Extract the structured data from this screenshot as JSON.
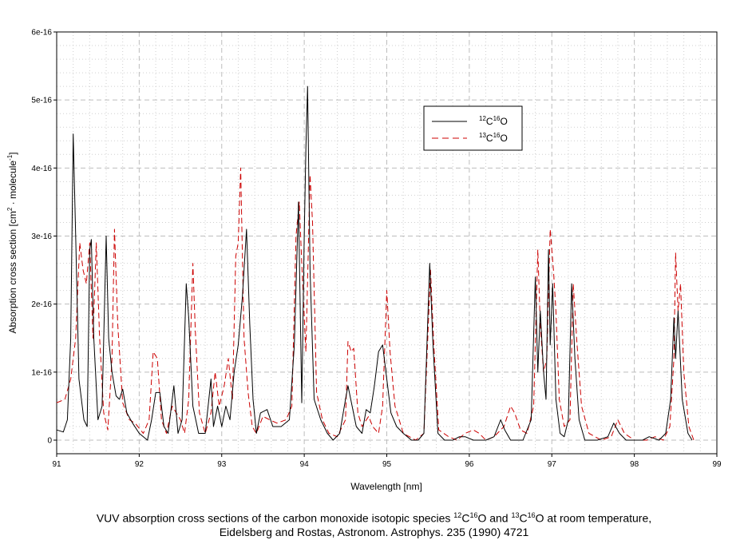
{
  "chart_data": {
    "type": "line",
    "xlabel": "Wavelength [nm]",
    "ylabel_prefix": "Absorption cross section [cm",
    "ylabel_sup1": "2",
    "ylabel_mid": " · molecule",
    "ylabel_sup2": "-1",
    "ylabel_suffix": "]",
    "xlim": [
      91,
      99
    ],
    "ylim": [
      0,
      6e-16
    ],
    "x_ticks": [
      "91",
      "92",
      "93",
      "94",
      "95",
      "96",
      "97",
      "98",
      "99"
    ],
    "y_ticks": [
      "0",
      "1e-16",
      "2e-16",
      "3e-16",
      "4e-16",
      "5e-16",
      "6e-16"
    ],
    "grid": true,
    "legend_position": "top-center-right",
    "series": [
      {
        "name": "12C16O",
        "label_parts": [
          "12",
          "C",
          "16",
          "O"
        ],
        "color": "#000000",
        "dash": "solid",
        "points": [
          [
            91.0,
            1.5e-17
          ],
          [
            91.08,
            1.2e-17
          ],
          [
            91.13,
            3e-17
          ],
          [
            91.17,
            1.5e-16
          ],
          [
            91.2,
            4.5e-16
          ],
          [
            91.23,
            3e-16
          ],
          [
            91.27,
            9e-17
          ],
          [
            91.33,
            3e-17
          ],
          [
            91.37,
            2e-17
          ],
          [
            91.4,
            2.8e-16
          ],
          [
            91.42,
            2.95e-16
          ],
          [
            91.45,
            1.5e-16
          ],
          [
            91.5,
            3e-17
          ],
          [
            91.55,
            5e-17
          ],
          [
            91.6,
            3e-16
          ],
          [
            91.63,
            1.5e-16
          ],
          [
            91.67,
            1e-16
          ],
          [
            91.72,
            6.5e-17
          ],
          [
            91.76,
            6e-17
          ],
          [
            91.8,
            7.5e-17
          ],
          [
            91.85,
            4e-17
          ],
          [
            91.92,
            2.5e-17
          ],
          [
            92.0,
            1e-17
          ],
          [
            92.1,
            0.0
          ],
          [
            92.15,
            3e-17
          ],
          [
            92.2,
            7e-17
          ],
          [
            92.25,
            7e-17
          ],
          [
            92.3,
            2e-17
          ],
          [
            92.35,
            1e-17
          ],
          [
            92.42,
            8e-17
          ],
          [
            92.47,
            1e-17
          ],
          [
            92.52,
            3e-17
          ],
          [
            92.57,
            2.3e-16
          ],
          [
            92.6,
            1.8e-16
          ],
          [
            92.65,
            5e-17
          ],
          [
            92.72,
            1e-17
          ],
          [
            92.8,
            1e-17
          ],
          [
            92.87,
            9e-17
          ],
          [
            92.9,
            2e-17
          ],
          [
            92.95,
            5e-17
          ],
          [
            93.0,
            2e-17
          ],
          [
            93.05,
            5e-17
          ],
          [
            93.1,
            3e-17
          ],
          [
            93.15,
            1e-16
          ],
          [
            93.2,
            1.4e-16
          ],
          [
            93.25,
            2.1e-16
          ],
          [
            93.3,
            3.1e-16
          ],
          [
            93.34,
            1.7e-16
          ],
          [
            93.38,
            6e-17
          ],
          [
            93.42,
            1e-17
          ],
          [
            93.47,
            4e-17
          ],
          [
            93.55,
            4.5e-17
          ],
          [
            93.62,
            2e-17
          ],
          [
            93.72,
            2e-17
          ],
          [
            93.82,
            3e-17
          ],
          [
            93.88,
            1.4e-16
          ],
          [
            93.93,
            3.5e-16
          ],
          [
            93.97,
            5.5e-17
          ],
          [
            94.0,
            3e-16
          ],
          [
            94.02,
            4.3e-16
          ],
          [
            94.04,
            5.2e-16
          ],
          [
            94.07,
            2.5e-16
          ],
          [
            94.12,
            6e-17
          ],
          [
            94.2,
            3e-17
          ],
          [
            94.28,
            1e-17
          ],
          [
            94.35,
            0.0
          ],
          [
            94.43,
            1e-17
          ],
          [
            94.5,
            6e-17
          ],
          [
            94.53,
            8e-17
          ],
          [
            94.58,
            5e-17
          ],
          [
            94.63,
            2e-17
          ],
          [
            94.7,
            1e-17
          ],
          [
            94.75,
            4.5e-17
          ],
          [
            94.8,
            4e-17
          ],
          [
            94.85,
            8e-17
          ],
          [
            94.9,
            1.3e-16
          ],
          [
            94.95,
            1.4e-16
          ],
          [
            95.0,
            9e-17
          ],
          [
            95.05,
            4e-17
          ],
          [
            95.12,
            2e-17
          ],
          [
            95.2,
            1e-17
          ],
          [
            95.3,
            0.0
          ],
          [
            95.38,
            0.0
          ],
          [
            95.45,
            1e-17
          ],
          [
            95.52,
            2.6e-16
          ],
          [
            95.56,
            1.4e-16
          ],
          [
            95.62,
            1e-17
          ],
          [
            95.7,
            0.0
          ],
          [
            95.8,
            0.0
          ],
          [
            95.88,
            5e-18
          ],
          [
            95.95,
            5e-18
          ],
          [
            96.05,
            0.0
          ],
          [
            96.2,
            0.0
          ],
          [
            96.3,
            5e-18
          ],
          [
            96.38,
            3e-17
          ],
          [
            96.43,
            1.5e-17
          ],
          [
            96.5,
            0.0
          ],
          [
            96.65,
            0.0
          ],
          [
            96.75,
            3e-17
          ],
          [
            96.8,
            2.4e-16
          ],
          [
            96.83,
            1e-16
          ],
          [
            96.86,
            1.9e-16
          ],
          [
            96.9,
            1e-16
          ],
          [
            96.93,
            6e-17
          ],
          [
            96.96,
            2.8e-16
          ],
          [
            96.98,
            1.4e-16
          ],
          [
            97.01,
            2.3e-16
          ],
          [
            97.05,
            6e-17
          ],
          [
            97.1,
            1e-17
          ],
          [
            97.15,
            5e-18
          ],
          [
            97.2,
            3e-17
          ],
          [
            97.24,
            2.3e-16
          ],
          [
            97.28,
            1.2e-16
          ],
          [
            97.33,
            3e-17
          ],
          [
            97.4,
            0.0
          ],
          [
            97.55,
            0.0
          ],
          [
            97.68,
            5e-18
          ],
          [
            97.75,
            2.5e-17
          ],
          [
            97.82,
            1e-17
          ],
          [
            97.9,
            0.0
          ],
          [
            98.0,
            0.0
          ],
          [
            98.1,
            0.0
          ],
          [
            98.18,
            5e-18
          ],
          [
            98.3,
            0.0
          ],
          [
            98.38,
            1e-17
          ],
          [
            98.44,
            6e-17
          ],
          [
            98.48,
            1.8e-16
          ],
          [
            98.5,
            1.2e-16
          ],
          [
            98.53,
            1.9e-16
          ],
          [
            98.58,
            6e-17
          ],
          [
            98.65,
            1e-17
          ],
          [
            98.7,
            0.0
          ]
        ]
      },
      {
        "name": "13C16O",
        "label_parts": [
          "13",
          "C",
          "16",
          "O"
        ],
        "color": "#cc0000",
        "dash": "dashed",
        "points": [
          [
            91.0,
            5.5e-17
          ],
          [
            91.1,
            6e-17
          ],
          [
            91.17,
            9e-17
          ],
          [
            91.23,
            1.5e-16
          ],
          [
            91.28,
            2.9e-16
          ],
          [
            91.32,
            2.5e-16
          ],
          [
            91.36,
            2.3e-16
          ],
          [
            91.4,
            2.9e-16
          ],
          [
            91.44,
            1.5e-16
          ],
          [
            91.48,
            2.9e-16
          ],
          [
            91.52,
            1.5e-16
          ],
          [
            91.57,
            4e-17
          ],
          [
            91.62,
            1.5e-17
          ],
          [
            91.67,
            1.2e-16
          ],
          [
            91.7,
            3.1e-16
          ],
          [
            91.74,
            1.7e-16
          ],
          [
            91.8,
            5.5e-17
          ],
          [
            91.88,
            3e-17
          ],
          [
            91.95,
            2.5e-17
          ],
          [
            92.05,
            1e-17
          ],
          [
            92.12,
            3e-17
          ],
          [
            92.17,
            1.3e-16
          ],
          [
            92.22,
            1.2e-16
          ],
          [
            92.27,
            3e-17
          ],
          [
            92.33,
            1e-17
          ],
          [
            92.4,
            5e-17
          ],
          [
            92.45,
            4e-17
          ],
          [
            92.5,
            3e-17
          ],
          [
            92.55,
            1e-17
          ],
          [
            92.6,
            6e-17
          ],
          [
            92.65,
            2.6e-16
          ],
          [
            92.68,
            1.6e-16
          ],
          [
            92.73,
            4e-17
          ],
          [
            92.8,
            1e-17
          ],
          [
            92.87,
            4e-17
          ],
          [
            92.92,
            1e-16
          ],
          [
            92.97,
            5e-17
          ],
          [
            93.03,
            8e-17
          ],
          [
            93.08,
            1.2e-16
          ],
          [
            93.13,
            6e-17
          ],
          [
            93.17,
            2.7e-16
          ],
          [
            93.2,
            2.9e-16
          ],
          [
            93.23,
            4e-16
          ],
          [
            93.27,
            1.5e-16
          ],
          [
            93.32,
            7e-17
          ],
          [
            93.37,
            2e-17
          ],
          [
            93.42,
            1e-17
          ],
          [
            93.5,
            3.5e-17
          ],
          [
            93.58,
            3e-17
          ],
          [
            93.67,
            2.5e-17
          ],
          [
            93.78,
            3e-17
          ],
          [
            93.85,
            5e-17
          ],
          [
            93.9,
            3e-16
          ],
          [
            93.94,
            3.5e-16
          ],
          [
            93.97,
            2.6e-16
          ],
          [
            94.02,
            1.3e-16
          ],
          [
            94.07,
            3.9e-16
          ],
          [
            94.1,
            3.2e-16
          ],
          [
            94.15,
            7e-17
          ],
          [
            94.22,
            3e-17
          ],
          [
            94.3,
            1e-17
          ],
          [
            94.4,
            5e-18
          ],
          [
            94.5,
            3e-17
          ],
          [
            94.53,
            1.45e-16
          ],
          [
            94.57,
            1.3e-16
          ],
          [
            94.6,
            1.35e-16
          ],
          [
            94.65,
            4e-17
          ],
          [
            94.7,
            2e-17
          ],
          [
            94.78,
            3.5e-17
          ],
          [
            94.83,
            2e-17
          ],
          [
            94.9,
            1e-17
          ],
          [
            94.95,
            5e-17
          ],
          [
            95.0,
            2.2e-16
          ],
          [
            95.04,
            1.3e-16
          ],
          [
            95.1,
            5e-17
          ],
          [
            95.2,
            1e-17
          ],
          [
            95.35,
            0.0
          ],
          [
            95.45,
            1e-17
          ],
          [
            95.53,
            2.5e-16
          ],
          [
            95.57,
            1.4e-16
          ],
          [
            95.63,
            1.5e-17
          ],
          [
            95.75,
            5e-18
          ],
          [
            95.85,
            0.0
          ],
          [
            95.95,
            1e-17
          ],
          [
            96.05,
            1.5e-17
          ],
          [
            96.12,
            1e-17
          ],
          [
            96.2,
            0.0
          ],
          [
            96.3,
            5e-18
          ],
          [
            96.42,
            2e-17
          ],
          [
            96.5,
            5e-17
          ],
          [
            96.55,
            4e-17
          ],
          [
            96.62,
            1.5e-17
          ],
          [
            96.7,
            1e-17
          ],
          [
            96.78,
            5e-17
          ],
          [
            96.83,
            2.8e-16
          ],
          [
            96.86,
            1.7e-16
          ],
          [
            96.9,
            1e-16
          ],
          [
            96.94,
            1.2e-16
          ],
          [
            96.98,
            3.1e-16
          ],
          [
            97.02,
            2.5e-16
          ],
          [
            97.05,
            1.9e-16
          ],
          [
            97.09,
            6e-17
          ],
          [
            97.15,
            2e-17
          ],
          [
            97.22,
            3e-17
          ],
          [
            97.26,
            2.3e-16
          ],
          [
            97.3,
            1.5e-16
          ],
          [
            97.36,
            5e-17
          ],
          [
            97.45,
            1e-17
          ],
          [
            97.6,
            0.0
          ],
          [
            97.72,
            5e-18
          ],
          [
            97.8,
            3e-17
          ],
          [
            97.88,
            1e-17
          ],
          [
            98.0,
            0.0
          ],
          [
            98.15,
            0.0
          ],
          [
            98.25,
            5e-18
          ],
          [
            98.35,
            0.0
          ],
          [
            98.43,
            2e-17
          ],
          [
            98.48,
            1.2e-16
          ],
          [
            98.5,
            2.75e-16
          ],
          [
            98.53,
            1.9e-16
          ],
          [
            98.56,
            2.3e-16
          ],
          [
            98.6,
            1e-16
          ],
          [
            98.66,
            2e-17
          ],
          [
            98.72,
            0.0
          ]
        ]
      }
    ]
  },
  "caption": {
    "line1_a": "VUV absorption cross sections of the carbon monoxide isotopic species ",
    "iso1_mass": "12",
    "iso1_elem": "C",
    "iso1_o_mass": "16",
    "iso1_o_elem": "O",
    "and": " and ",
    "iso2_mass": "13",
    "iso2_elem": "C",
    "iso2_o_mass": "16",
    "iso2_o_elem": "O",
    "line1_b": " at room temperature,",
    "line2": "Eidelsberg and Rostas, Astronom. Astrophys. 235 (1990) 4721"
  }
}
